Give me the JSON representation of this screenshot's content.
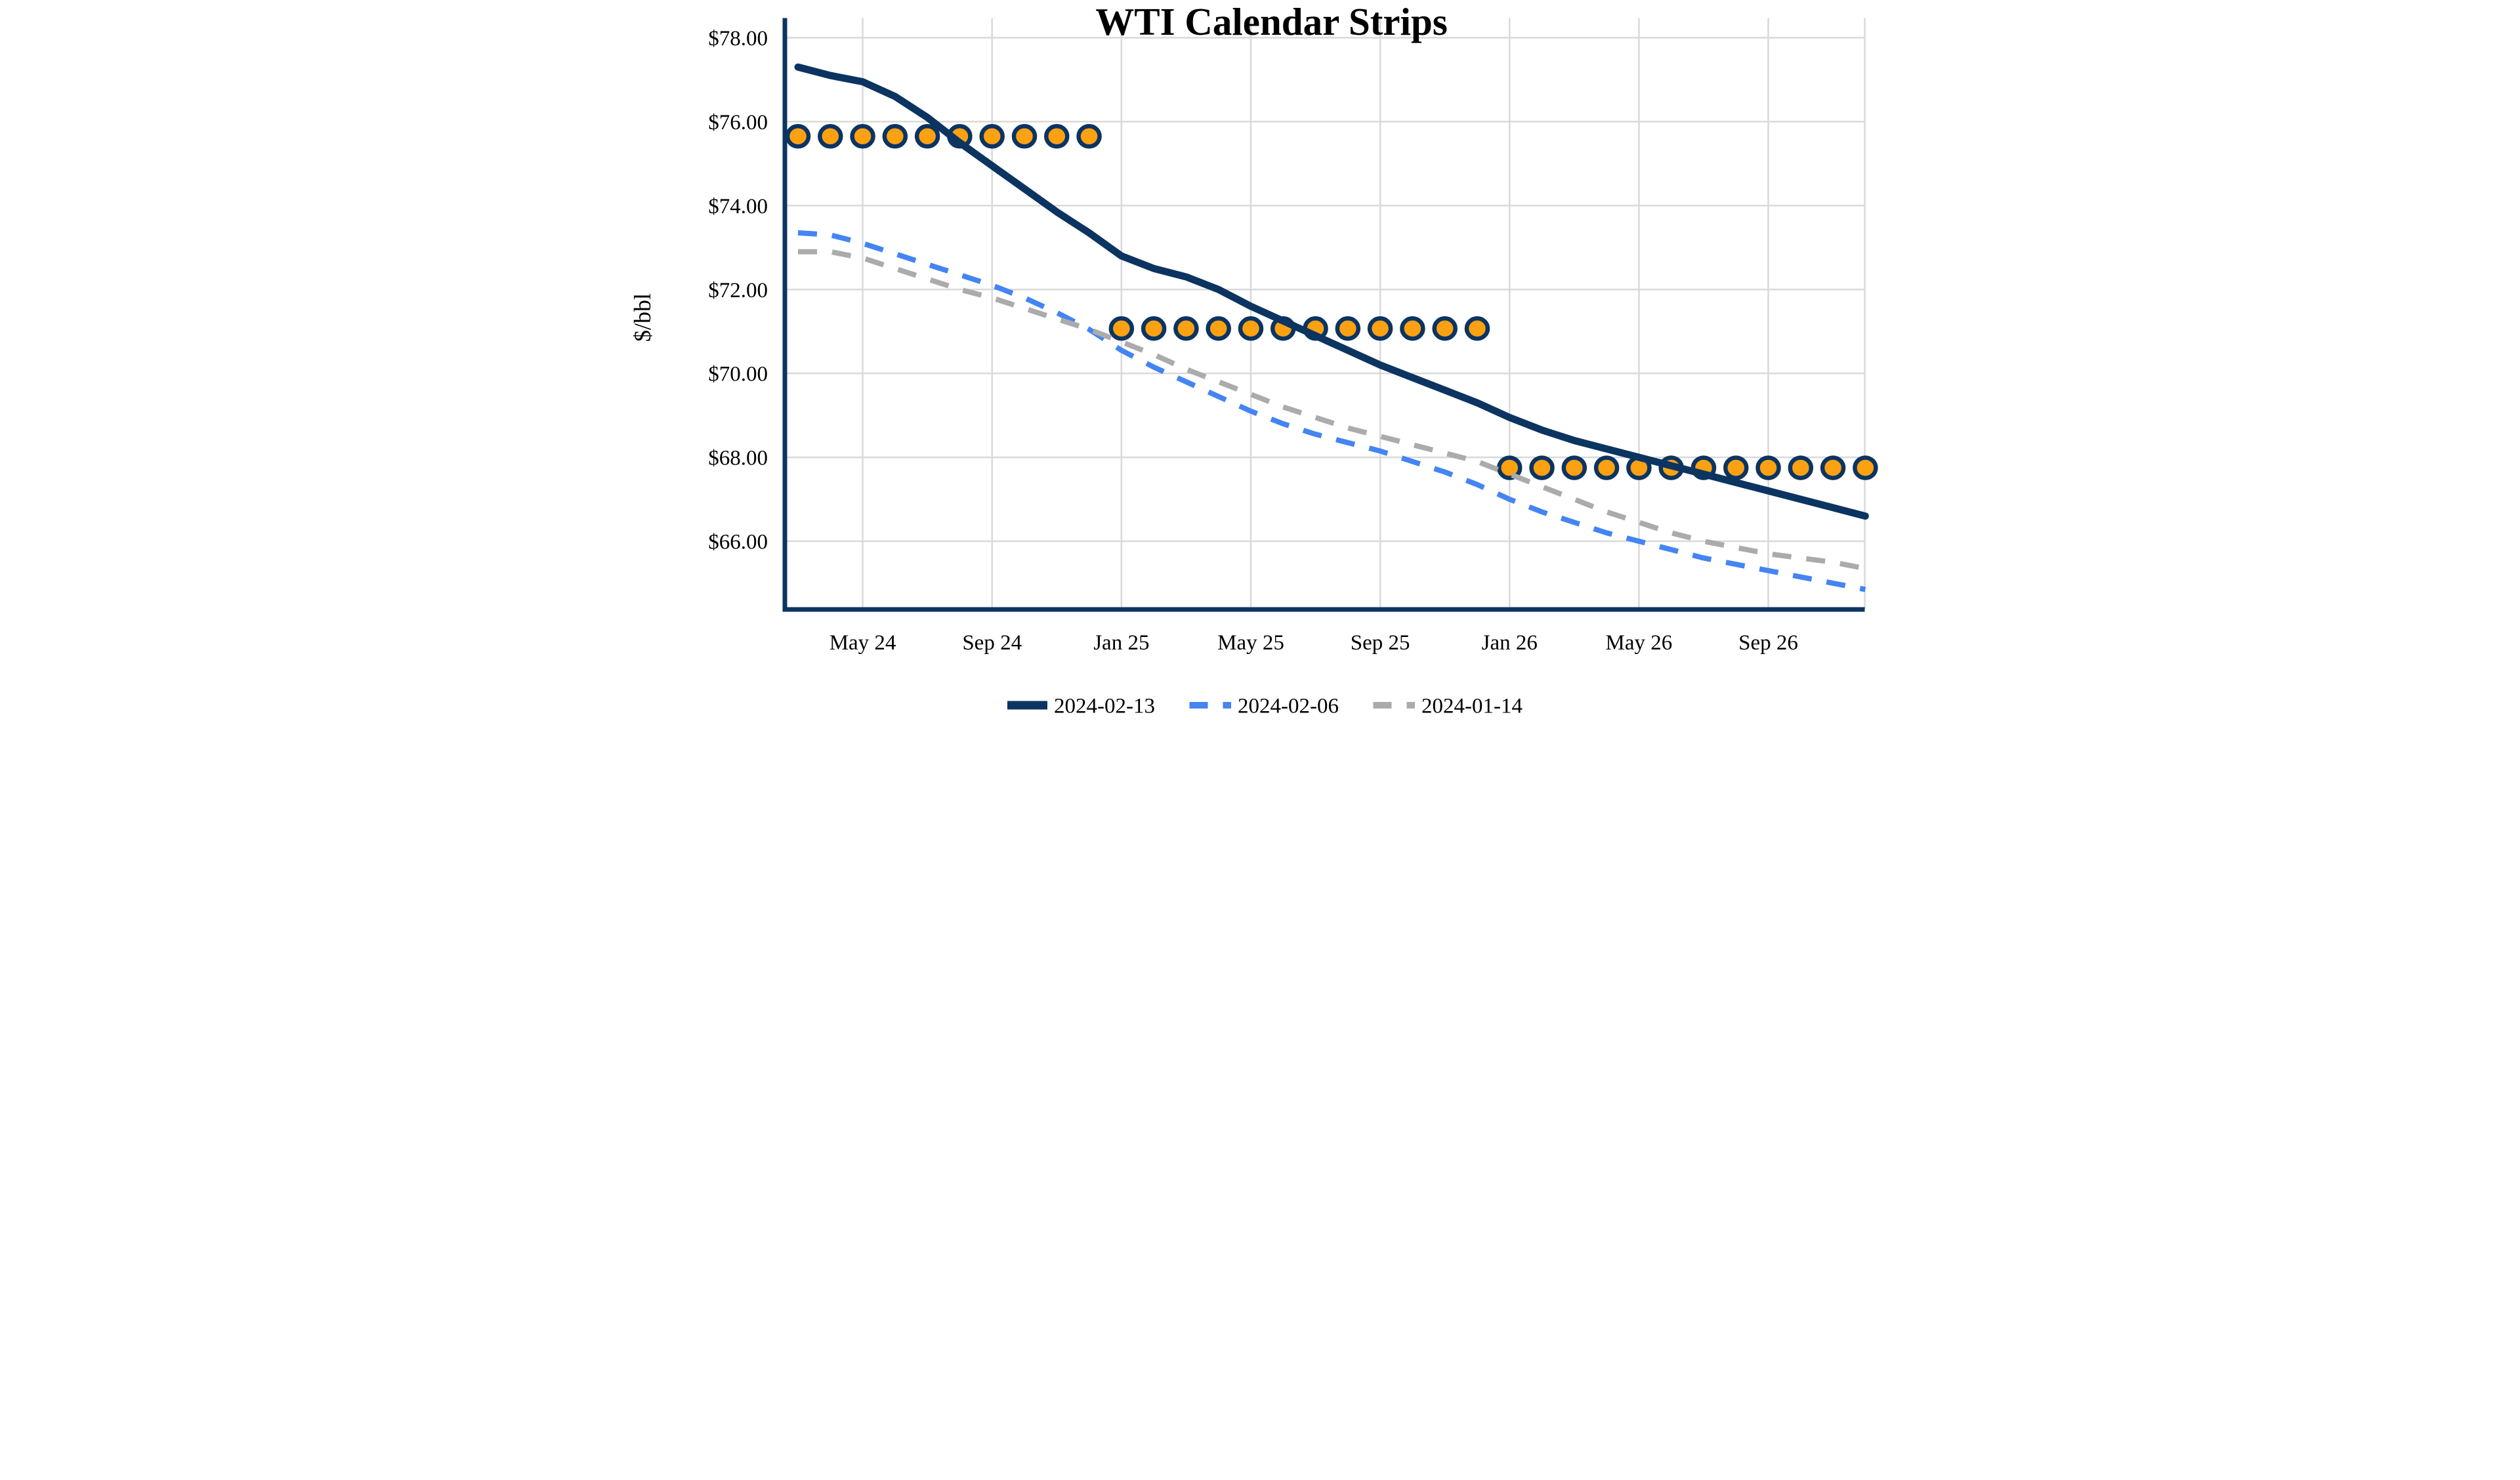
{
  "title": "WTI Calendar Strips",
  "y_axis_label": "$/bbl",
  "colors": {
    "navy": "#0C3461",
    "blue": "#4484F3",
    "gray": "#ABABAB",
    "orange_fill": "#FBA112",
    "gridline": "#D9D9D9",
    "text": "#000000",
    "background": "#FFFFFF"
  },
  "chart_data": {
    "type": "line",
    "title": "WTI Calendar Strips",
    "xlabel": "",
    "ylabel": "$/bbl",
    "grid": "on",
    "legend_position": "bottom-center",
    "ylim": [
      64.2,
      78.0
    ],
    "y_ticks": [
      {
        "value": 78,
        "label": "$78.00"
      },
      {
        "value": 76,
        "label": "$76.00"
      },
      {
        "value": 74,
        "label": "$74.00"
      },
      {
        "value": 72,
        "label": "$72.00"
      },
      {
        "value": 70,
        "label": "$70.00"
      },
      {
        "value": 68,
        "label": "$68.00"
      },
      {
        "value": 66,
        "label": "$66.00"
      }
    ],
    "x": [
      "Mar-24",
      "Apr-24",
      "May-24",
      "Jun-24",
      "Jul-24",
      "Aug-24",
      "Sep-24",
      "Oct-24",
      "Nov-24",
      "Dec-24",
      "Jan-25",
      "Feb-25",
      "Mar-25",
      "Apr-25",
      "May-25",
      "Jun-25",
      "Jul-25",
      "Aug-25",
      "Sep-25",
      "Oct-25",
      "Nov-25",
      "Dec-25",
      "Jan-26",
      "Feb-26",
      "Mar-26",
      "Apr-26",
      "May-26",
      "Jun-26",
      "Jul-26",
      "Aug-26",
      "Sep-26",
      "Oct-26",
      "Nov-26",
      "Dec-26"
    ],
    "x_ticks": [
      {
        "index": 2,
        "label": "May 24"
      },
      {
        "index": 6,
        "label": "Sep 24"
      },
      {
        "index": 10,
        "label": "Jan 25"
      },
      {
        "index": 14,
        "label": "May 25"
      },
      {
        "index": 18,
        "label": "Sep 25"
      },
      {
        "index": 22,
        "label": "Jan 26"
      },
      {
        "index": 26,
        "label": "May 26"
      },
      {
        "index": 30,
        "label": "Sep 26"
      }
    ],
    "series": [
      {
        "name": "2024-02-13",
        "style": "solid",
        "color": "#0C3461",
        "width": 22,
        "values": [
          77.3,
          77.1,
          76.95,
          76.6,
          76.1,
          75.5,
          74.95,
          74.4,
          73.85,
          73.35,
          72.8,
          72.5,
          72.3,
          72.0,
          71.6,
          71.25,
          70.9,
          70.55,
          70.2,
          69.9,
          69.6,
          69.3,
          68.95,
          68.65,
          68.4,
          68.2,
          68.0,
          67.8,
          67.6,
          67.4,
          67.2,
          67.0,
          66.8,
          66.6
        ]
      },
      {
        "name": "2024-02-06",
        "style": "dashed",
        "color": "#4484F3",
        "width": 16,
        "values": [
          73.35,
          73.3,
          73.1,
          72.85,
          72.6,
          72.35,
          72.1,
          71.8,
          71.45,
          71.05,
          70.55,
          70.15,
          69.8,
          69.45,
          69.1,
          68.8,
          68.55,
          68.35,
          68.15,
          67.9,
          67.65,
          67.35,
          67.0,
          66.7,
          66.45,
          66.2,
          66.0,
          65.8,
          65.6,
          65.45,
          65.3,
          65.15,
          65.0,
          64.85
        ]
      },
      {
        "name": "2024-01-14",
        "style": "dashed",
        "color": "#ABABAB",
        "width": 16,
        "values": [
          72.9,
          72.9,
          72.75,
          72.5,
          72.25,
          72.0,
          71.8,
          71.55,
          71.3,
          71.05,
          70.75,
          70.45,
          70.1,
          69.8,
          69.5,
          69.2,
          68.95,
          68.7,
          68.5,
          68.3,
          68.1,
          67.9,
          67.6,
          67.3,
          67.0,
          66.7,
          66.45,
          66.2,
          66.0,
          65.85,
          65.7,
          65.6,
          65.5,
          65.35
        ]
      }
    ],
    "calendar_strip_markers": {
      "marker": "circle",
      "fill": "#FBA112",
      "outline": "#0C3461",
      "rows": [
        {
          "start_index": 0,
          "end_index": 9,
          "value": 75.65
        },
        {
          "start_index": 10,
          "end_index": 21,
          "value": 71.07
        },
        {
          "start_index": 22,
          "end_index": 33,
          "value": 67.75
        }
      ]
    }
  },
  "legend": {
    "items": [
      {
        "label": "2024-02-13"
      },
      {
        "label": "2024-02-06"
      },
      {
        "label": "2024-01-14"
      }
    ]
  }
}
